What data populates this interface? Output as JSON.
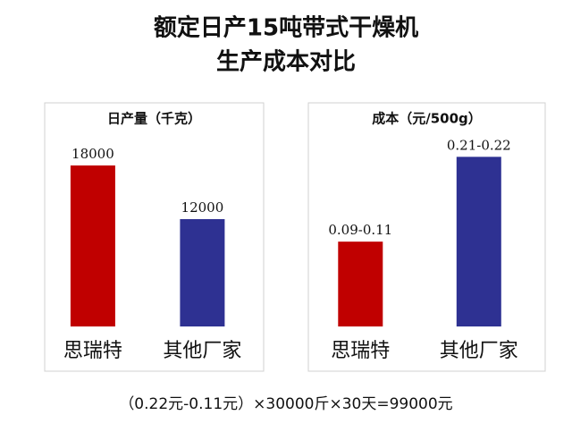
{
  "title": [
    "额定日产15吨带式干燥机",
    "生产成本对比"
  ],
  "footnote": "（0.22元-0.11元）×30000斤×30天=99000元",
  "chart_data": [
    {
      "type": "bar",
      "title": "日产量（千克）",
      "categories": [
        "思瑞特",
        "其他厂家"
      ],
      "values": [
        18000,
        12000
      ],
      "colors": [
        "#c00000",
        "#2e3192"
      ],
      "ylim": [
        0,
        25000
      ]
    },
    {
      "type": "bar",
      "title": "成本（元/500g）",
      "categories": [
        "思瑞特",
        "其他厂家"
      ],
      "values": [
        0.11,
        0.22
      ],
      "value_labels": [
        "0.09-0.11",
        "0.21-0.22"
      ],
      "colors": [
        "#c00000",
        "#2e3192"
      ],
      "ylim": [
        0,
        0.29
      ]
    }
  ]
}
